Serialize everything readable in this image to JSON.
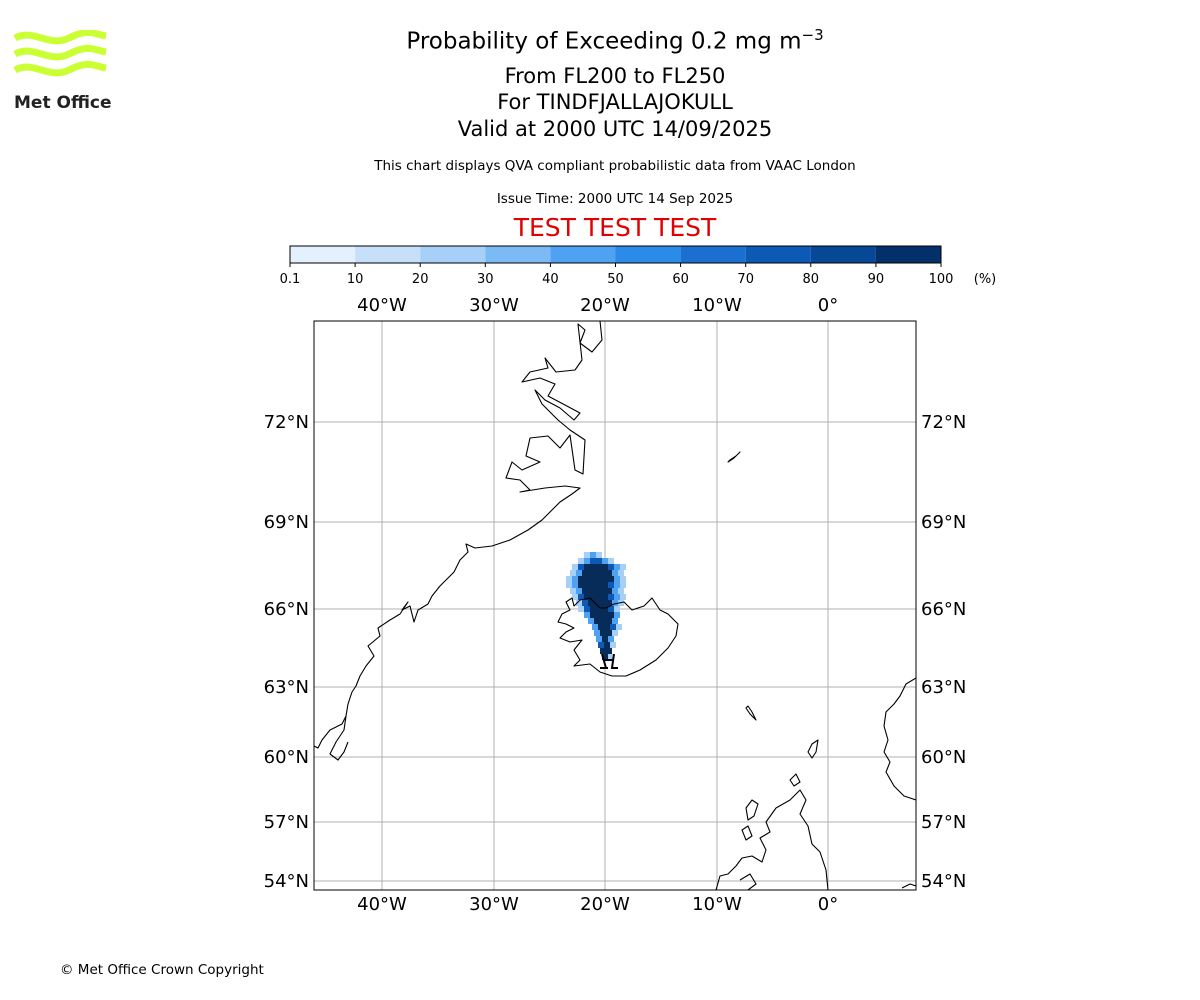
{
  "logo": {
    "text": "Met Office",
    "color": "#ccff33"
  },
  "title": {
    "line1_main": "Probability of Exceeding 0.2 mg m",
    "line1_sup": "−3",
    "line2": "From FL200 to FL250",
    "line3": "For TINDFJALLAJOKULL",
    "line4": "Valid at 2000 UTC 14/09/2025"
  },
  "subtitle": "This chart displays QVA compliant probabilistic data from VAAC London",
  "issue_time": "Issue Time: 2000 UTC 14 Sep 2025",
  "watermark": "TEST TEST TEST",
  "colorbar": {
    "ticks": [
      "0.1",
      "10",
      "20",
      "30",
      "40",
      "50",
      "60",
      "70",
      "80",
      "90",
      "100"
    ],
    "unit": "(%)",
    "colors": [
      "#e3f0fd",
      "#c6e0fa",
      "#a6d0f8",
      "#7bbaf5",
      "#4ea2f1",
      "#2a8be9",
      "#1b6fd0",
      "#0d59b6",
      "#064895",
      "#03306a"
    ]
  },
  "map": {
    "lon_labels": [
      "40°W",
      "30°W",
      "20°W",
      "10°W",
      "0°"
    ],
    "lat_labels": [
      "72°N",
      "69°N",
      "66°N",
      "63°N",
      "60°N",
      "57°N",
      "54°N"
    ],
    "grid_color": "#b0b0b0",
    "coast_color": "#000000",
    "plume_colors": {
      "dark": "#082c5a",
      "mid": "#0d59b6",
      "light": "#4ea2f1",
      "pale": "#a6d0f8"
    }
  },
  "copyright": "© Met Office Crown Copyright"
}
